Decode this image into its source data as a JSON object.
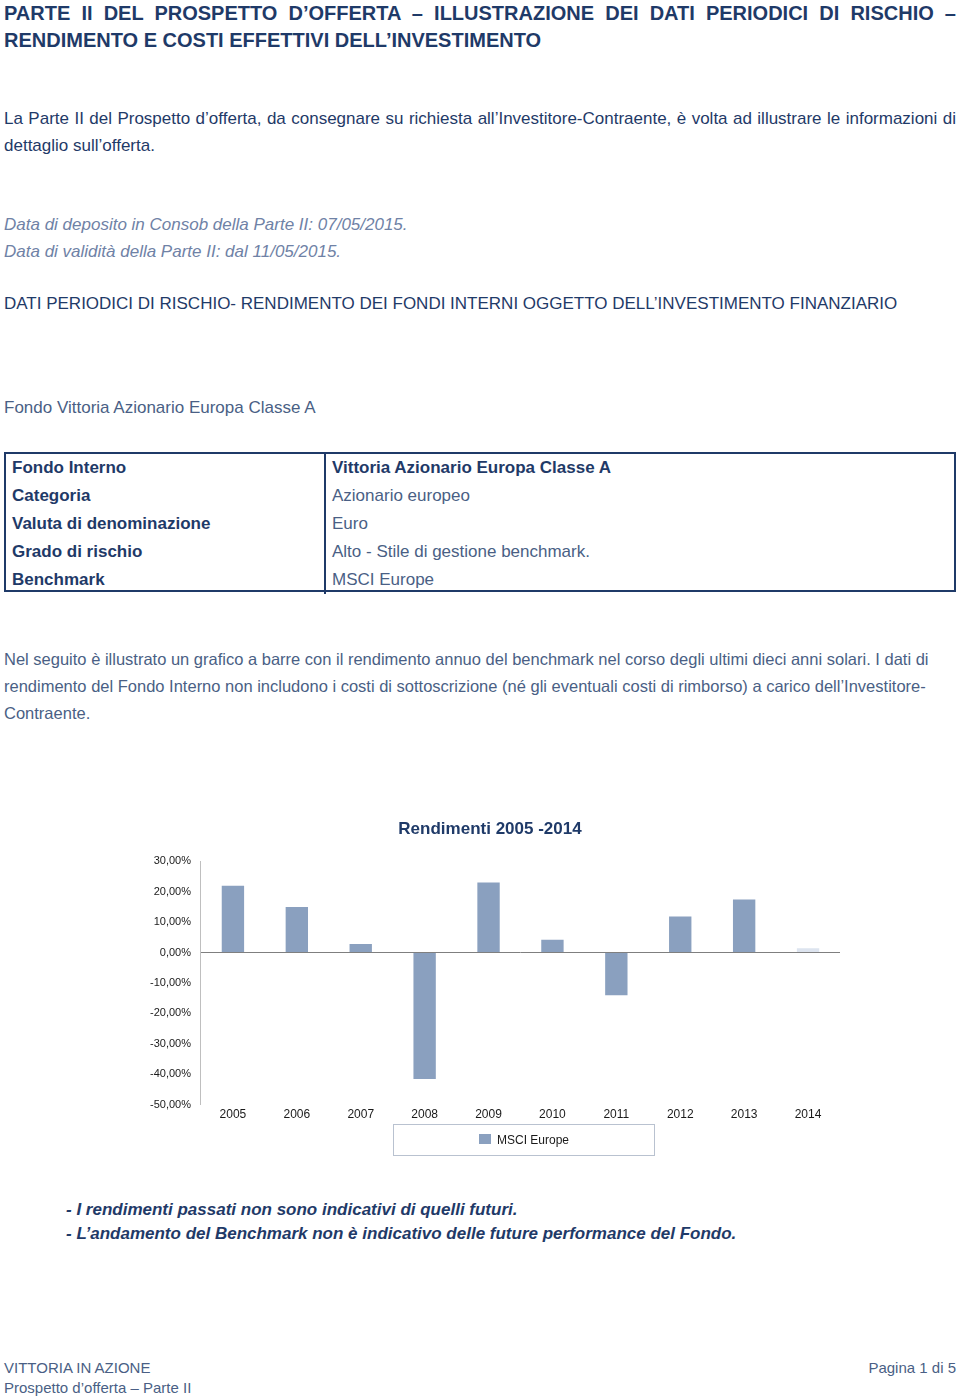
{
  "header": {
    "title": "PARTE II DEL PROSPETTO D’OFFERTA – ILLUSTRAZIONE DEI DATI PERIODICI DI RISCHIO – RENDIMENTO E COSTI EFFETTIVI DELL’INVESTIMENTO",
    "intro": "La Parte II del Prospetto d’offerta, da consegnare su richiesta all’Investitore-Contraente, è volta ad illustrare le informazioni di dettaglio sull’offerta.",
    "dates": [
      "Data di deposito in Consob della Parte II: 07/05/2015.",
      "Data di validità della Parte II: dal 11/05/2015."
    ]
  },
  "section_title": "DATI PERIODICI DI RISCHIO- RENDIMENTO DEI FONDI INTERNI OGGETTO DELL’INVESTIMENTO FINANZIARIO",
  "fund_title": "Fondo Vittoria Azionario Europa Classe A",
  "table": {
    "rows": [
      [
        "Fondo Interno",
        "Vittoria Azionario Europa Classe A"
      ],
      [
        "Categoria",
        "Azionario europeo"
      ],
      [
        "Valuta di denominazione",
        "Euro"
      ],
      [
        "Grado di rischio",
        "Alto - Stile di gestione benchmark."
      ],
      [
        "Benchmark",
        "MSCI Europe"
      ]
    ]
  },
  "description": "Nel seguito è illustrato un grafico a barre con il rendimento annuo del benchmark nel corso degli ultimi dieci anni solari. I dati di rendimento del Fondo Interno non includono i costi di sottoscrizione (né gli eventuali costi di rimborso) a carico dell’Investitore-Contraente.",
  "chart_data": {
    "type": "bar",
    "title": "Rendimenti 2005 -2014",
    "categories": [
      "2005",
      "2006",
      "2007",
      "2008",
      "2009",
      "2010",
      "2011",
      "2012",
      "2013",
      "2014"
    ],
    "series": [
      {
        "name": "MSCI Europe",
        "color": "#8aa0bf",
        "colors": [
          "#8aa0bf",
          "#8aa0bf",
          "#8aa0bf",
          "#8aa0bf",
          "#8aa0bf",
          "#8aa0bf",
          "#8aa0bf",
          "#8aa0bf",
          "#8aa0bf",
          "#dde4ef"
        ],
        "values": [
          22.0,
          15.0,
          2.8,
          -41.6,
          23.1,
          4.2,
          -14.0,
          11.9,
          17.5,
          1.4
        ]
      }
    ],
    "ylim": [
      -50,
      30
    ],
    "yticks": [
      {
        "value": -50,
        "label": "-50,00%"
      },
      {
        "value": -40,
        "label": "-40,00%"
      },
      {
        "value": -30,
        "label": "-30,00%"
      },
      {
        "value": -20,
        "label": "-20,00%"
      },
      {
        "value": -10,
        "label": "-10,00%"
      },
      {
        "value": 0,
        "label": "0,00%"
      },
      {
        "value": 10,
        "label": "10,00%"
      },
      {
        "value": 20,
        "label": "20,00%"
      },
      {
        "value": 30,
        "label": "30,00%"
      }
    ],
    "grid": false,
    "legend": "bottom"
  },
  "notes": [
    "- I rendimenti passati non sono indicativi di quelli futuri.",
    "- L’andamento del Benchmark non è indicativo delle future performance del Fondo."
  ],
  "footer": {
    "left": [
      "VITTORIA IN AZIONE",
      "Prospetto d’offerta – Parte II"
    ],
    "right": "Pagina 1 di 5"
  }
}
